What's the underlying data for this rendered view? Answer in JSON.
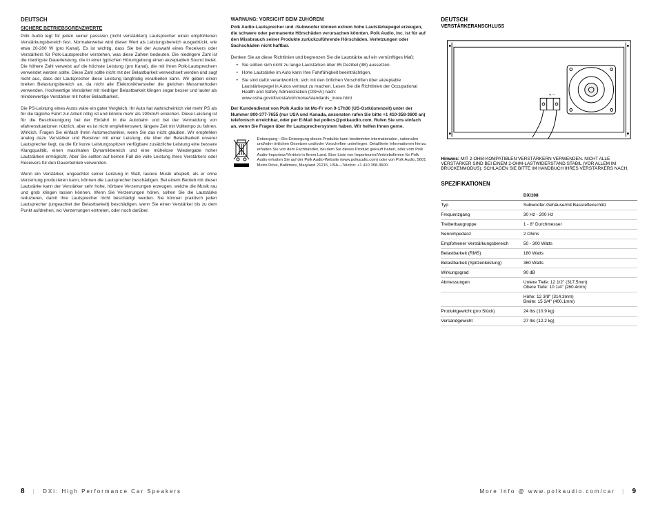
{
  "col1": {
    "heading": "Deutsch",
    "subheading": "Sichere Betriebsgrenzwerte",
    "p1": "Polk Audio legt für jeden seiner passiven (nicht verstärkten) Lautsprecher einen empfohlenen Verstärkungsbereich fest. Normalerweise wird dieser Wert als Leistungsbereich ausgedrückt, wie etwa 20-200 W (pro Kanal). Es ist wichtig, dass Sie bei der Auswahl eines Receivers oder Verstärkers für Polk-Lautsprecher verstehen, was diese Zahlen bedeuten. Die niedrigere Zahl ist die niedrigste Dauerleistung, die in einer typischen Hörumgebung einen akzeptablen Sound bietet. Die höhere Zahl verweist auf die höchste Leistung (pro Kanal), die mit Ihren Polk-Lautsprechern verwendet werden sollte. Diese Zahl sollte nicht mit der Belastbarkeit verwechselt werden und sagt nicht aus, dass der Lautsprecher diese Leistung langfristig verarbeiten kann. Wir geben einen breiten Belastungsbereich an, da nicht alle Elektronikhersteller die gleichen Messmethoden verwenden. Hochwertige Verstärker mit niedriger Belastbarkeit klingen sogar besser und lauter als minderwertige Verstärker mit hoher Belastbarkeit.",
    "p2": "Die PS-Leistung eines Autos wäre ein guter Vergleich. Ihr Auto hat wahrscheinlich viel mehr PS als für die tägliche Fahrt zur Arbeit nötig ist und könnte mehr als 190km/h erreichen. Diese Leistung ist für die Beschleunigung bei der Einfahrt in die Autobahn und bei der Vermeidung von efahrensituationen nützlich, aber es ist nicht empfehlenswert, längere Zeit mit Volltempo zu fahren. Wirklich. Fragen Sie einfach Ihren Automechaniker, wenn Sie das nicht glauben. Wir empfehlen analog dazu Verstärker und Receiver mit einer Leistung, die über der Belastbarkeit unserer Lautsprecher liegt, da die für kurze Leistungsspitzen verfügbare zusätzliche Leistung eine bessere Klangqualität, einen maximalen Dynamikbereich und eine mühelose Wiedergabe hoher Lautstärken ermöglicht. Aber Sie sollten auf keinen Fall die volle Leistung Ihres Verstärkers oder Receivers für den Dauerbetrieb verwenden.",
    "p3": "Wenn ein Verstärker, ungeachtet seiner Leistung in Watt, lautere Musik abspielt, als er ohne Verzerrung produzieren kann, können die Lautsprecher beschädigen. Bei einem Betrieb mit dieser Lautstärke kann der Verstärker sehr hohe, hörbare Verzerrungen erzeugen, welche die Musik rau und grob klingen lassen können. Wenn Sie Verzerrungen hören, sollten Sie die Lautstärke reduzieren, damit Ihre Lautsprecher nicht beschädigt werden. Sie können praktisch jeden Lautsprecher (ungeachtet der Belastbarkeit) beschädigen, wenn Sie einen Verstärker bis zu dem Punkt aufdrehen, wo Verzerrungen eintreten, oder noch darüber."
  },
  "col2": {
    "heading": "Warnung: Vorsicht beim Zuhören!",
    "warn": "Polk Audio-Lautsprecher und -Subwoofer können extrem hohe Lautstärkepegel erzeugen, die schwere oder permanente Hörschäden verursachen könnten. Polk Audio, Inc. ist für auf den Missbrauch seiner Produkte zurückzuführende Hörschäden, Verletzungen oder Sachschäden nicht haftbar.",
    "p1": "Denken Sie an diese Richtlinien und begrenzen Sie die Lautstärke auf ein vernünftiges Maß:",
    "b1": "Sie sollten sich nicht zu lange Lautstärken über 85 Dezibel (dB) aussetzen.",
    "b2": "Hohe Lautstärke im Auto kann Ihre Fahrfähigkeit beeinträchtigen.",
    "b3": "Sie sind dafür verantwortlich, sich mit den örtlichen Vorschriften über akzeptable Lautstärkepegel in Autos vertraut zu machen. Lesen Sie die Richtlinien der Occupational Health and Safety Administration (OSHA) nach: www.osha.gov/dts/osta/otm/noise/standards_more.html",
    "service": "Der Kundendienst von Polk Audio ist Mo-Fr von 9-17h30 (US-Ostküstenzeit) unter der Nummer 800-377-7655 (nur USA und Kanada, ansonsten rufen Sie bitte +1 410-358-3600 an) telefonisch erreichbar, oder per E-Mail bei polkcs@polkaudio.com. Rufen Sie uns einfach an, wenn Sie Fragen über Ihr Lautsprechersystem haben. Wir helfen Ihnen gerne.",
    "disposal": "Entsorgung—Die Entsorgung dieses Produkts kann bestimmten internationalen, nationalen und/oder örtlichen Gesetzen und/oder Vorschriften unterliegen. Detaillierte Informationen hierzu erhalten Sie von dem Fachhändler, bei dem Sie dieses Produkt gekauft haben, oder vom Polk Audio-Importeur/Vertrieb in Ihrem Land. Eine Liste von Importeuren/Vertriebsfirmen für Polk Audio erhalten Sie auf der Polk Audio-Website (www.polkaudio.com) oder von Polk Audio, 5601 Metro Drive, Baltimore, Maryland 21215, USA—Telefon: +1 410 358-3600."
  },
  "col3": {
    "heading": "Deutsch",
    "subheading": "Verstärkeranschluss",
    "hinweis_label": "Hinweis:",
    "hinweis": "Mit 2-Ohm-kompatiblen Verstärkern verwenden. Nicht alle Verstärker sind bei einem 2-Ohm-Lastwiderstand stabil (vor allem im Brückenmodus). Schlagen Sie bitte im Handbuch Ihres Verstärkers nach.",
    "spec_head": "Spezifikationen",
    "model": "DXi108",
    "rows": [
      {
        "k": "Typ",
        "v": "Subwoofer-Gehäuse/mit Bassreflexschlitz"
      },
      {
        "k": "Frequenzgang",
        "v": "30 Hz - 200 Hz"
      },
      {
        "k": "Treiberbaugruppe",
        "v": "1 - 8\" Durchmesser"
      },
      {
        "k": "Nennimpedanz",
        "v": "2 Ohms"
      },
      {
        "k": "Empfohlener Verstärkungsbereich",
        "v": "50 - 300 Watts"
      },
      {
        "k": "Belastbarkeit (RMS)",
        "v": "180 Watts"
      },
      {
        "k": "Belastbarkeit (Spitzenleistung)",
        "v": "360 Watts"
      },
      {
        "k": "Wirkungsgrad",
        "v": "90 dB"
      },
      {
        "k": "Abmessungen",
        "v": "Untere Tiefe: 12 1/2\" (317.5mm)\nObere Tiefe: 10 1/4\" (260.4mm)"
      },
      {
        "k": "",
        "v": "Höhe: 12 3/8\" (314.3mm)\nBreite: 15 3/4\" (400.1mm)"
      },
      {
        "k": "Produktgewicht (pro Stück)",
        "v": "24 lbs (10.9 kg)"
      },
      {
        "k": "Versandgewicht",
        "v": "27 lbs (12.2 kg)"
      }
    ]
  },
  "footer": {
    "left_page": "8",
    "left_text": "DXi: High Performance Car Speakers",
    "right_text": "More Info @ www.polkaudio.com/car",
    "right_page": "9"
  }
}
